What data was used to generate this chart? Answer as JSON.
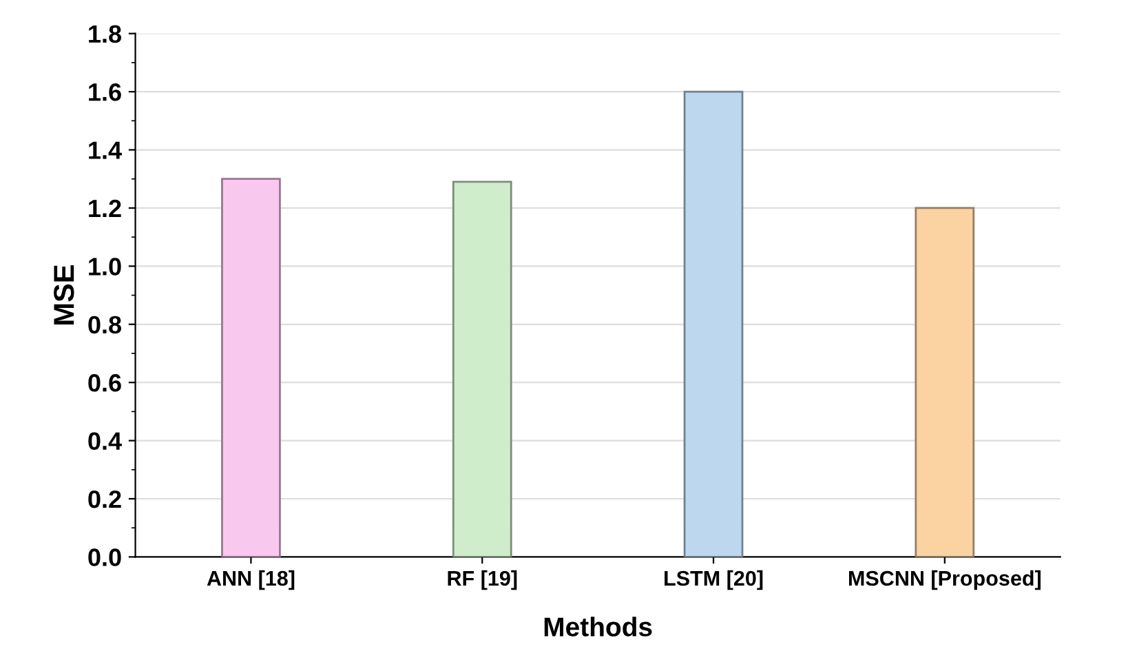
{
  "chart_data": {
    "type": "bar",
    "xlabel": "Methods",
    "ylabel": "MSE",
    "categories": [
      "ANN [18]",
      "RF [19]",
      "LSTM [20]",
      "MSCNN [Proposed]"
    ],
    "values": [
      1.3,
      1.29,
      1.6,
      1.2
    ],
    "colors": [
      "#f9c8ef",
      "#cfeccb",
      "#bdd7ee",
      "#fbd3a3"
    ],
    "ylim": [
      0,
      1.8
    ],
    "yticks": [
      {
        "value": 0,
        "label": "0.0"
      },
      0.2,
      0.4,
      0.6,
      0.8,
      {
        "value": 1,
        "label": "1.0"
      },
      1.2,
      1.4,
      1.6,
      1.8
    ],
    "grid": "y"
  }
}
